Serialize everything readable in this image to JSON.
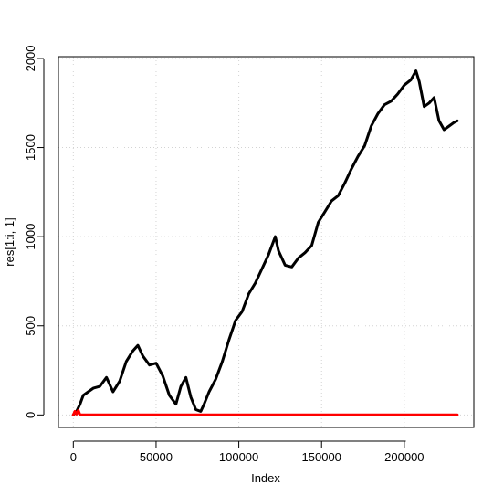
{
  "chart_data": {
    "type": "line",
    "title": "",
    "xlabel": "Index",
    "ylabel": "res[1:i, 1]",
    "xlim": [
      -9000,
      242000
    ],
    "ylim": [
      -70,
      2010
    ],
    "x_ticks": [
      0,
      50000,
      100000,
      150000,
      200000
    ],
    "x_tick_labels": [
      "0",
      "50000",
      "100000",
      "150000",
      "200000"
    ],
    "y_ticks": [
      0,
      500,
      1000,
      1500,
      2000
    ],
    "y_tick_labels": [
      "0",
      "500",
      "1000",
      "1500",
      "2000"
    ],
    "grid": true,
    "legend": "none",
    "series": [
      {
        "color": "#000000",
        "x": [
          0,
          2000,
          4000,
          6000,
          9000,
          12000,
          16000,
          20000,
          24000,
          28000,
          32000,
          36000,
          39000,
          42000,
          46000,
          50000,
          54000,
          58000,
          62000,
          65000,
          68000,
          71000,
          74000,
          77000,
          79000,
          82000,
          86000,
          90000,
          94000,
          98000,
          102000,
          106000,
          110000,
          114000,
          118000,
          122000,
          124000,
          128000,
          132000,
          136000,
          140000,
          144000,
          148000,
          152000,
          156000,
          160000,
          164000,
          168000,
          172000,
          176000,
          180000,
          184000,
          188000,
          192000,
          196000,
          200000,
          204000,
          207000,
          209000,
          212000,
          215000,
          218000,
          221000,
          224000,
          227000,
          230000,
          232000
        ],
        "y": [
          0,
          20,
          60,
          110,
          130,
          150,
          160,
          210,
          130,
          190,
          300,
          360,
          390,
          330,
          280,
          290,
          220,
          110,
          60,
          160,
          210,
          100,
          30,
          20,
          60,
          130,
          200,
          300,
          420,
          530,
          580,
          680,
          740,
          820,
          900,
          1000,
          920,
          840,
          830,
          880,
          910,
          950,
          1080,
          1140,
          1200,
          1230,
          1300,
          1380,
          1450,
          1510,
          1620,
          1690,
          1740,
          1760,
          1800,
          1850,
          1880,
          1930,
          1870,
          1730,
          1750,
          1780,
          1650,
          1600,
          1620,
          1640,
          1650
        ]
      },
      {
        "color": "#ff0000",
        "x": [
          0,
          1000,
          2000,
          3000,
          4000,
          5000,
          232000
        ],
        "y": [
          0,
          20,
          5,
          25,
          0,
          0,
          0
        ]
      }
    ]
  }
}
